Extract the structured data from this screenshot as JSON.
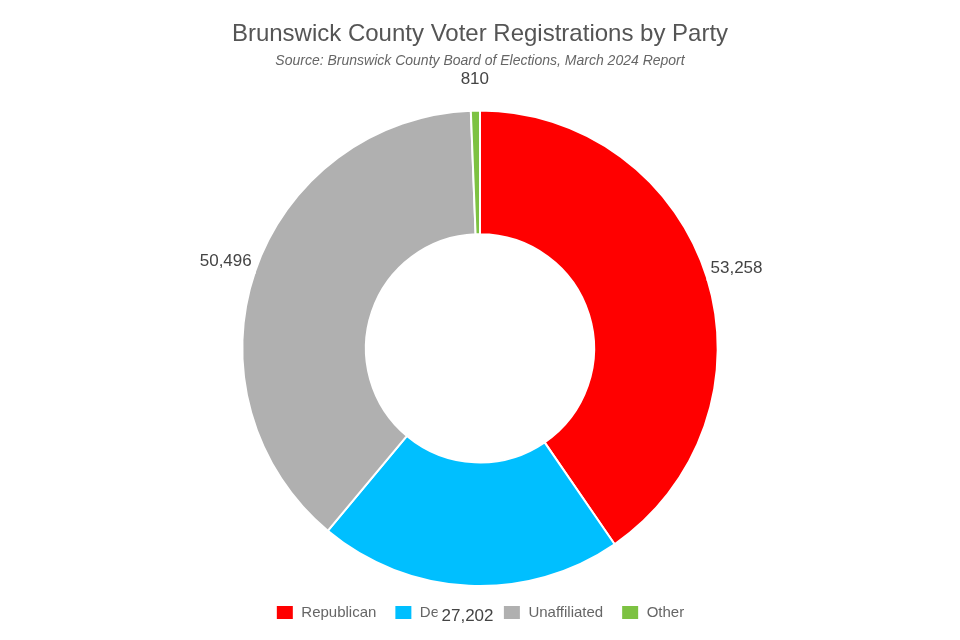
{
  "chart_data": {
    "type": "doughnut",
    "title": "Brunswick County Voter Registrations by Party",
    "subtitle": "Source: Brunswick County Board of Elections, March 2024 Report",
    "categories": [
      "Republican",
      "Democrat",
      "Unaffiliated",
      "Other"
    ],
    "values": [
      53258,
      27202,
      50496,
      810
    ],
    "value_labels": [
      "53,258",
      "27,202",
      "50,496",
      "810"
    ],
    "colors": [
      "#ff0000",
      "#00bfff",
      "#b0b0b0",
      "#7dc242"
    ],
    "data_labels": true,
    "legend": "bottom"
  }
}
